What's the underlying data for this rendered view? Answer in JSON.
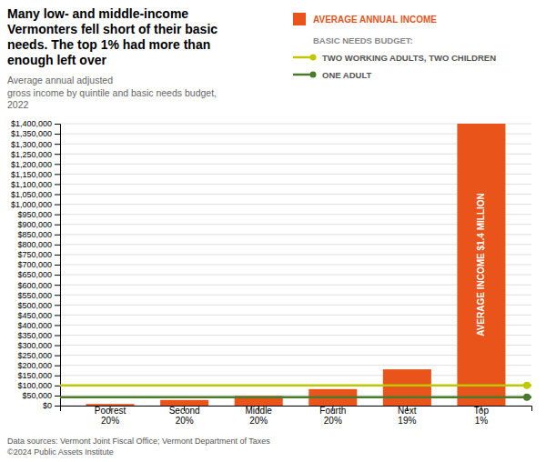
{
  "chart_data": {
    "type": "bar",
    "title": "Many low- and middle-income\nVermonters fell short of their basic\nneeds. The top 1% had more than\nenough left over",
    "subtitle": "Average annual adjusted\ngross income by quintile and basic needs budget,\n2022",
    "categories": [
      "Poorest\n20%",
      "Second\n20%",
      "Middle\n20%",
      "Fourth\n20%",
      "Next\n19%",
      "Top\n1%"
    ],
    "series": [
      {
        "name": "AVERAGE ANNUAL INCOME",
        "color": "#E8541A",
        "values": [
          8000,
          28000,
          48000,
          82000,
          180000,
          1400000
        ]
      }
    ],
    "legend_title": "BASIC NEEDS BUDGET:",
    "lines": [
      {
        "name": "TWO WORKING ADULTS, TWO CHILDREN",
        "color": "#BEC800",
        "value": 100000
      },
      {
        "name": "ONE ADULT",
        "color": "#4A7A2A",
        "value": 42000
      }
    ],
    "annotation": "AVERAGE INCOME $1.4 MILLION",
    "footnote": "Data sources: Vermont Joint Fiscal Office; Vermont Department of Taxes\n©2024 Public Assets Institute",
    "ylim": [
      0,
      1400000
    ],
    "yticks": [
      {
        "value": 0,
        "label": "$0"
      },
      {
        "value": 50000,
        "label": "$50,000"
      },
      {
        "value": 100000,
        "label": "$100,000"
      },
      {
        "value": 150000,
        "label": "$150,000"
      },
      {
        "value": 200000,
        "label": "$200,000"
      },
      {
        "value": 250000,
        "label": "$250,000"
      },
      {
        "value": 300000,
        "label": "$300,000"
      },
      {
        "value": 350000,
        "label": "$350,000"
      },
      {
        "value": 400000,
        "label": "$400,000"
      },
      {
        "value": 450000,
        "label": "$450,000"
      },
      {
        "value": 500000,
        "label": "$500,000"
      },
      {
        "value": 550000,
        "label": "$550,000"
      },
      {
        "value": 600000,
        "label": "$600,000"
      },
      {
        "value": 650000,
        "label": "$650,000"
      },
      {
        "value": 700000,
        "label": "$700,000"
      },
      {
        "value": 750000,
        "label": "$750,000"
      },
      {
        "value": 800000,
        "label": "$800,000"
      },
      {
        "value": 850000,
        "label": "$850,000"
      },
      {
        "value": 900000,
        "label": "$900,000"
      },
      {
        "value": 950000,
        "label": "$950,000"
      },
      {
        "value": 1000000,
        "label": "$1,000,000"
      },
      {
        "value": 1050000,
        "label": "$1,050,000"
      },
      {
        "value": 1100000,
        "label": "$1,100,000"
      },
      {
        "value": 1150000,
        "label": "$1,150,000"
      },
      {
        "value": 1200000,
        "label": "$1,200,000"
      },
      {
        "value": 1250000,
        "label": "$1,250,000"
      },
      {
        "value": 1300000,
        "label": "$1,300,000"
      },
      {
        "value": 1350000,
        "label": "$1,350,000"
      },
      {
        "value": 1400000,
        "label": "$1,400,000"
      }
    ],
    "grid": true,
    "legend": "top-right"
  }
}
